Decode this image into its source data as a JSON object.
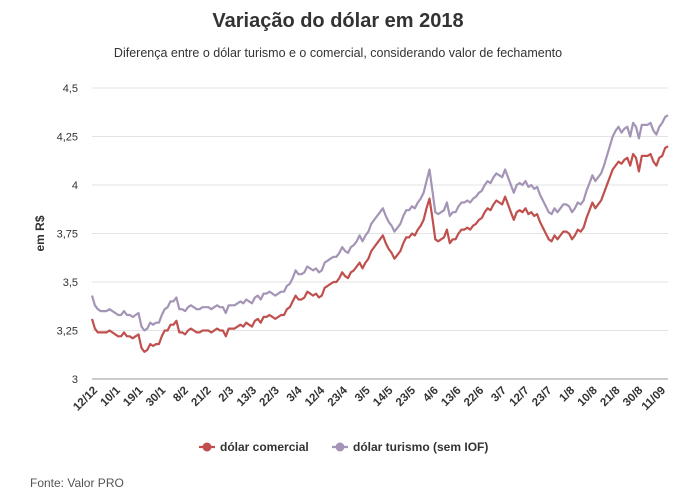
{
  "chart_data": {
    "type": "line",
    "title": "Variação do dólar em 2018",
    "subtitle": "Diferença entre o dólar turismo e o comercial, considerando valor de fechamento",
    "ylabel": "em R$",
    "xlabel": "",
    "ylim": [
      3,
      4.5
    ],
    "yticks": [
      "3",
      "3,25",
      "3,5",
      "3,75",
      "4",
      "4,25",
      "4,5"
    ],
    "ytick_values": [
      3,
      3.25,
      3.5,
      3.75,
      4,
      4.25,
      4.5
    ],
    "grid": true,
    "legend_position": "bottom",
    "xtick_labels": [
      "12/12",
      "10/1",
      "19/1",
      "30/1",
      "8/2",
      "21/2",
      "2/3",
      "13/3",
      "22/3",
      "3/4",
      "12/4",
      "23/4",
      "3/5",
      "14/5",
      "23/5",
      "4/6",
      "13/6",
      "22/6",
      "3/7",
      "12/7",
      "23/7",
      "1/8",
      "10/8",
      "21/8",
      "30/8",
      "11/09"
    ],
    "colors": {
      "comercial": "#c0504d",
      "turismo": "#a494b6",
      "grid": "#e3e3e3",
      "axis": "#999999"
    },
    "series": [
      {
        "name": "dólar comercial",
        "color": "#c0504d",
        "values": [
          3.31,
          3.26,
          3.24,
          3.24,
          3.24,
          3.24,
          3.25,
          3.24,
          3.23,
          3.22,
          3.22,
          3.24,
          3.22,
          3.22,
          3.21,
          3.22,
          3.23,
          3.16,
          3.14,
          3.15,
          3.18,
          3.17,
          3.18,
          3.18,
          3.22,
          3.25,
          3.25,
          3.28,
          3.28,
          3.3,
          3.24,
          3.24,
          3.23,
          3.25,
          3.26,
          3.25,
          3.24,
          3.24,
          3.25,
          3.25,
          3.25,
          3.24,
          3.25,
          3.26,
          3.25,
          3.25,
          3.22,
          3.26,
          3.26,
          3.26,
          3.27,
          3.28,
          3.27,
          3.29,
          3.28,
          3.27,
          3.3,
          3.31,
          3.29,
          3.32,
          3.32,
          3.33,
          3.32,
          3.31,
          3.32,
          3.33,
          3.33,
          3.36,
          3.37,
          3.4,
          3.43,
          3.41,
          3.41,
          3.42,
          3.45,
          3.44,
          3.43,
          3.44,
          3.42,
          3.43,
          3.47,
          3.48,
          3.49,
          3.5,
          3.5,
          3.52,
          3.55,
          3.53,
          3.52,
          3.55,
          3.56,
          3.58,
          3.6,
          3.57,
          3.6,
          3.62,
          3.66,
          3.68,
          3.7,
          3.72,
          3.74,
          3.7,
          3.67,
          3.65,
          3.62,
          3.64,
          3.66,
          3.7,
          3.73,
          3.73,
          3.75,
          3.74,
          3.77,
          3.79,
          3.82,
          3.88,
          3.93,
          3.83,
          3.72,
          3.71,
          3.72,
          3.73,
          3.77,
          3.7,
          3.72,
          3.72,
          3.75,
          3.77,
          3.77,
          3.78,
          3.77,
          3.79,
          3.8,
          3.82,
          3.83,
          3.86,
          3.88,
          3.87,
          3.9,
          3.92,
          3.91,
          3.9,
          3.94,
          3.9,
          3.86,
          3.82,
          3.86,
          3.87,
          3.86,
          3.88,
          3.85,
          3.86,
          3.84,
          3.85,
          3.81,
          3.78,
          3.75,
          3.72,
          3.71,
          3.74,
          3.72,
          3.74,
          3.76,
          3.76,
          3.75,
          3.72,
          3.74,
          3.77,
          3.76,
          3.78,
          3.83,
          3.87,
          3.91,
          3.88,
          3.9,
          3.92,
          3.96,
          4.0,
          4.04,
          4.08,
          4.1,
          4.12,
          4.11,
          4.13,
          4.14,
          4.1,
          4.16,
          4.14,
          4.07,
          4.15,
          4.15,
          4.15,
          4.16,
          4.12,
          4.1,
          4.14,
          4.15,
          4.19,
          4.2
        ]
      },
      {
        "name": "dólar turismo (sem IOF)",
        "color": "#a494b6",
        "values": [
          3.43,
          3.38,
          3.36,
          3.35,
          3.35,
          3.35,
          3.36,
          3.35,
          3.34,
          3.33,
          3.33,
          3.35,
          3.33,
          3.33,
          3.32,
          3.33,
          3.34,
          3.27,
          3.25,
          3.26,
          3.29,
          3.28,
          3.29,
          3.29,
          3.33,
          3.36,
          3.37,
          3.4,
          3.4,
          3.42,
          3.36,
          3.36,
          3.35,
          3.37,
          3.38,
          3.37,
          3.36,
          3.36,
          3.37,
          3.37,
          3.37,
          3.36,
          3.37,
          3.38,
          3.37,
          3.37,
          3.34,
          3.38,
          3.38,
          3.38,
          3.39,
          3.4,
          3.39,
          3.41,
          3.4,
          3.39,
          3.42,
          3.43,
          3.41,
          3.44,
          3.44,
          3.45,
          3.44,
          3.43,
          3.44,
          3.45,
          3.45,
          3.48,
          3.49,
          3.52,
          3.56,
          3.54,
          3.54,
          3.55,
          3.58,
          3.57,
          3.56,
          3.57,
          3.55,
          3.56,
          3.6,
          3.61,
          3.62,
          3.63,
          3.63,
          3.65,
          3.68,
          3.66,
          3.65,
          3.68,
          3.69,
          3.71,
          3.74,
          3.71,
          3.74,
          3.76,
          3.8,
          3.82,
          3.84,
          3.86,
          3.88,
          3.84,
          3.81,
          3.79,
          3.76,
          3.78,
          3.8,
          3.84,
          3.87,
          3.87,
          3.89,
          3.88,
          3.91,
          3.93,
          3.96,
          4.02,
          4.08,
          3.97,
          3.86,
          3.85,
          3.86,
          3.87,
          3.91,
          3.84,
          3.86,
          3.86,
          3.89,
          3.91,
          3.91,
          3.92,
          3.91,
          3.93,
          3.94,
          3.96,
          3.97,
          4.0,
          4.02,
          4.01,
          4.04,
          4.06,
          4.05,
          4.04,
          4.08,
          4.04,
          4.0,
          3.96,
          4.0,
          4.01,
          4.0,
          4.02,
          3.99,
          4.0,
          3.98,
          3.99,
          3.95,
          3.92,
          3.89,
          3.86,
          3.85,
          3.88,
          3.86,
          3.88,
          3.9,
          3.9,
          3.89,
          3.86,
          3.88,
          3.91,
          3.9,
          3.92,
          3.97,
          4.01,
          4.05,
          4.02,
          4.04,
          4.06,
          4.1,
          4.15,
          4.2,
          4.25,
          4.28,
          4.3,
          4.27,
          4.29,
          4.3,
          4.25,
          4.32,
          4.3,
          4.24,
          4.31,
          4.31,
          4.31,
          4.32,
          4.28,
          4.26,
          4.3,
          4.32,
          4.35,
          4.36
        ]
      }
    ]
  },
  "source": "Fonte: Valor PRO"
}
